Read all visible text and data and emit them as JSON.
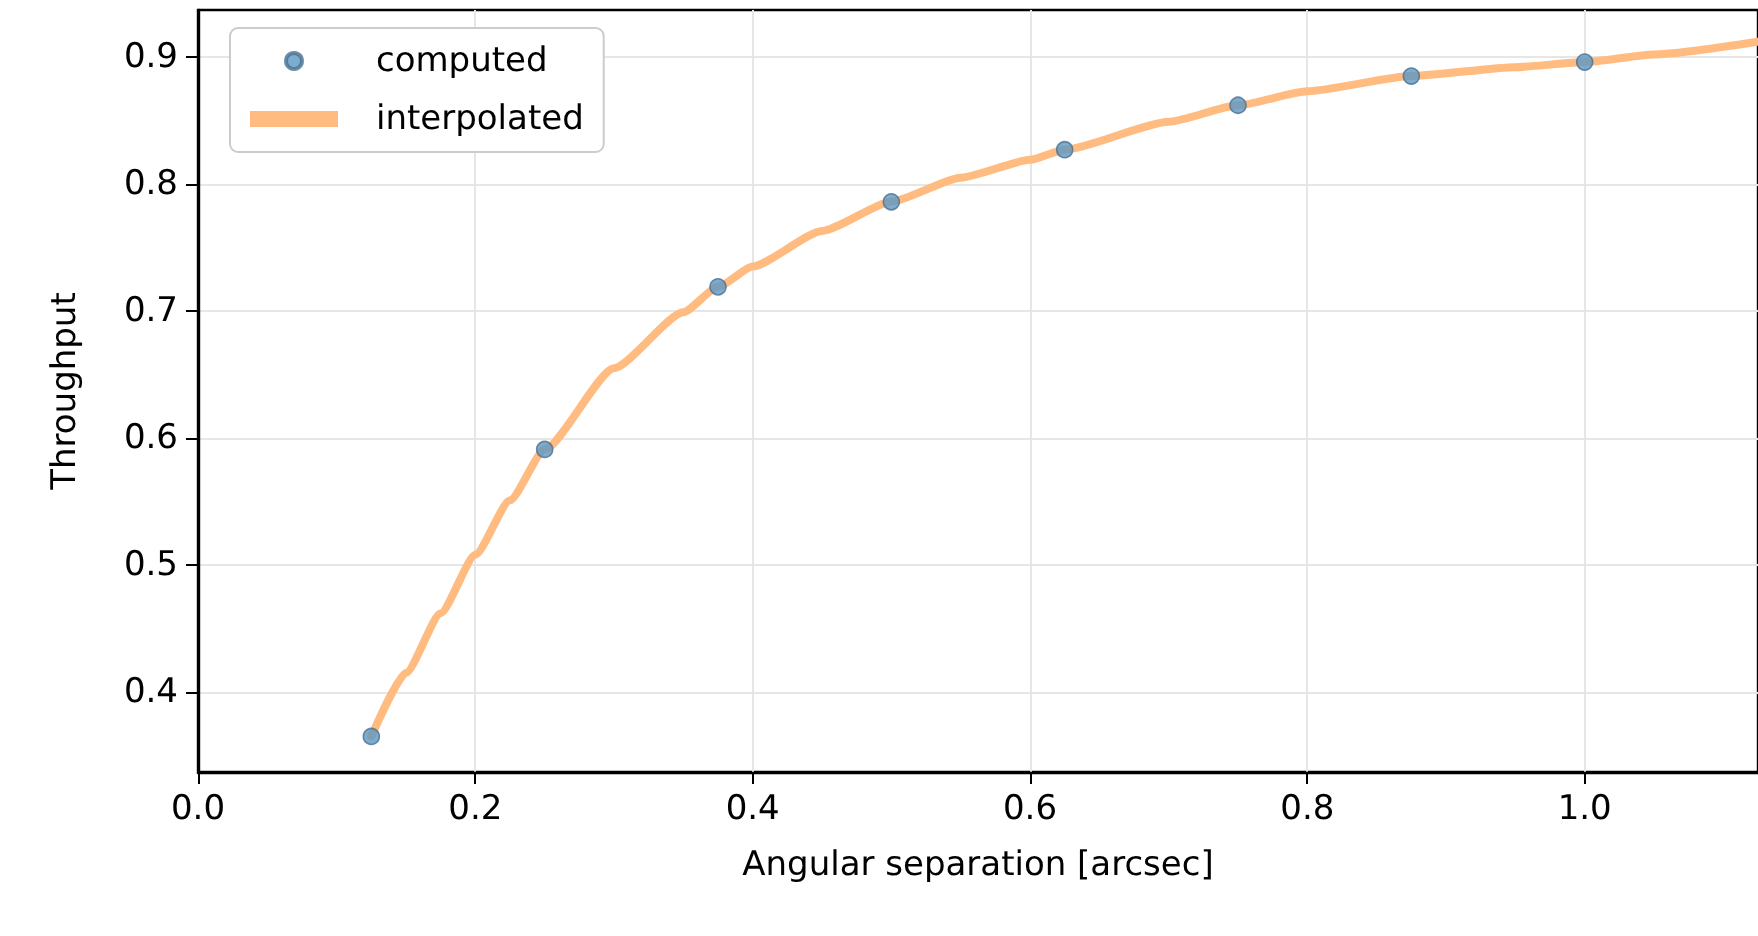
{
  "chart_data": {
    "type": "scatter",
    "xlabel": "Angular separation [arcsec]",
    "ylabel": "Throughput",
    "xlim": [
      0,
      1.125
    ],
    "xticks": [
      {
        "value": 0,
        "label": "0.0"
      },
      {
        "value": 0.2,
        "label": "0.2"
      },
      {
        "value": 0.4,
        "label": "0.4"
      },
      {
        "value": 0.6,
        "label": "0.6"
      },
      {
        "value": 0.8,
        "label": "0.8"
      },
      {
        "value": 1,
        "label": "1.0"
      }
    ],
    "ylim": [
      0.337,
      0.937
    ],
    "yticks": [
      0.4,
      0.5,
      0.6,
      0.7,
      0.8,
      0.9
    ],
    "grid": true,
    "legend": "top left",
    "series": [
      {
        "name": "computed",
        "marker": "circle",
        "color": "#5b97c4",
        "x": [
          0.125,
          0.25,
          0.375,
          0.5,
          0.625,
          0.75,
          0.875,
          1.0
        ],
        "values": [
          0.365,
          0.591,
          0.719,
          0.786,
          0.827,
          0.862,
          0.885,
          0.896
        ]
      },
      {
        "name": "interpolated",
        "type": "line",
        "line_style": "solid",
        "color": "#ffbb80",
        "x": [
          0.125,
          0.15,
          0.175,
          0.2,
          0.225,
          0.25,
          0.3,
          0.35,
          0.375,
          0.4,
          0.45,
          0.5,
          0.55,
          0.6,
          0.625,
          0.7,
          0.75,
          0.8,
          0.875,
          0.95,
          1.0,
          1.05,
          1.125
        ],
        "values": [
          0.365,
          0.415,
          0.462,
          0.508,
          0.551,
          0.591,
          0.655,
          0.699,
          0.719,
          0.735,
          0.763,
          0.786,
          0.805,
          0.819,
          0.827,
          0.849,
          0.862,
          0.873,
          0.885,
          0.892,
          0.896,
          0.902,
          0.912
        ]
      }
    ]
  }
}
